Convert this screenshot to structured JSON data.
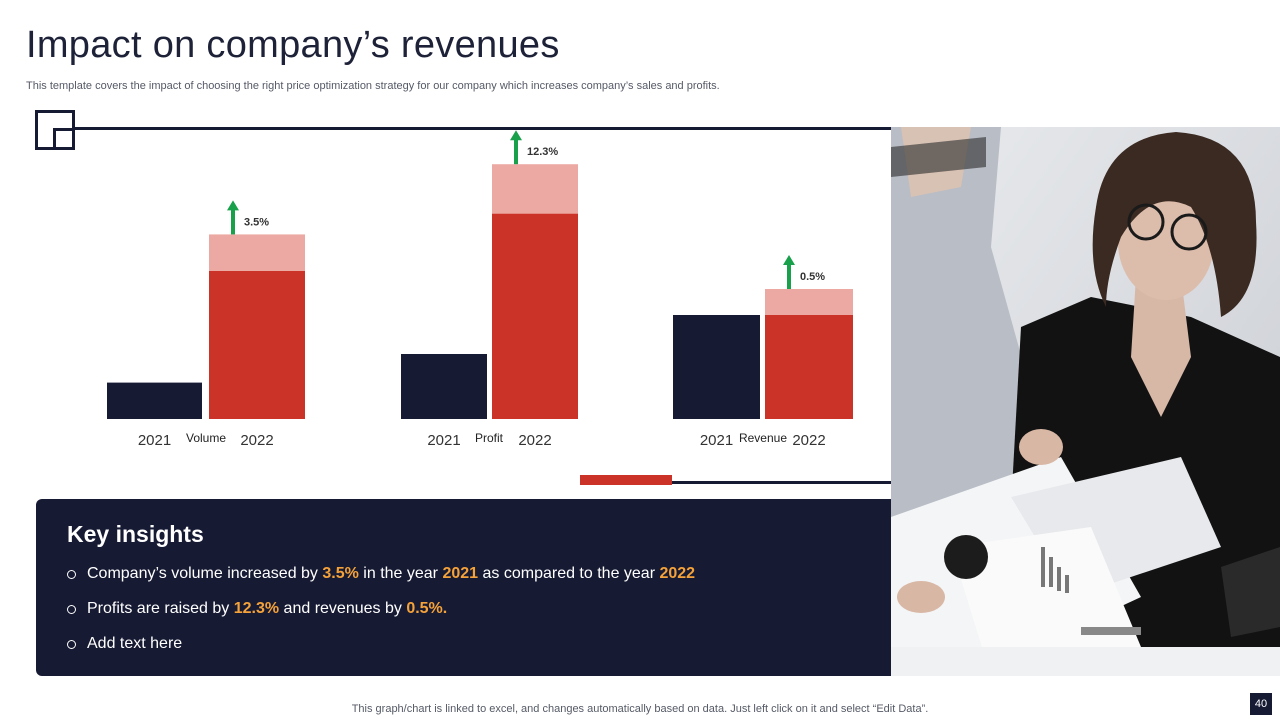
{
  "title": "Impact on company’s revenues",
  "subtitle": "This template covers the impact of choosing the right price optimization strategy for our company which increases company’s sales and profits.",
  "footer": "This graph/chart is linked to excel,  and changes automatically based on data. Just left click on it and select “Edit Data”.",
  "page_number": "40",
  "colors": {
    "navy": "#161a33",
    "red": "#cc3328",
    "pink": "#eca9a4",
    "green": "#18a04a",
    "orange": "#f5a23a"
  },
  "chart_data": {
    "type": "bar",
    "stacked_second_bar": true,
    "ylim": [
      0,
      100
    ],
    "groups": [
      {
        "label": "Volume",
        "years": [
          "2021",
          "2022"
        ],
        "value_2021": 14,
        "value_2022_base": 57,
        "value_2022_increase": 14,
        "change_label": "3.5%"
      },
      {
        "label": "Profit",
        "years": [
          "2021",
          "2022"
        ],
        "value_2021": 25,
        "value_2022_base": 79,
        "value_2022_increase": 19,
        "change_label": "12.3%"
      },
      {
        "label": "Revenue",
        "years": [
          "2021",
          "2022"
        ],
        "value_2021": 40,
        "value_2022_base": 40,
        "value_2022_increase": 10,
        "change_label": "0.5%"
      }
    ]
  },
  "insights": {
    "heading": "Key insights",
    "bullets": [
      [
        {
          "t": "Company’s volume  increased by "
        },
        {
          "t": "3.5%",
          "hl": true
        },
        {
          "t": " in the year "
        },
        {
          "t": "2021",
          "hl": true
        },
        {
          "t": " as compared to the year "
        },
        {
          "t": "2022",
          "hl": true
        }
      ],
      [
        {
          "t": "Profits are raised by "
        },
        {
          "t": "12.3%",
          "hl": true
        },
        {
          "t": " and revenues  by "
        },
        {
          "t": "0.5%.",
          "hl": true
        }
      ],
      [
        {
          "t": "Add text here"
        }
      ]
    ]
  }
}
